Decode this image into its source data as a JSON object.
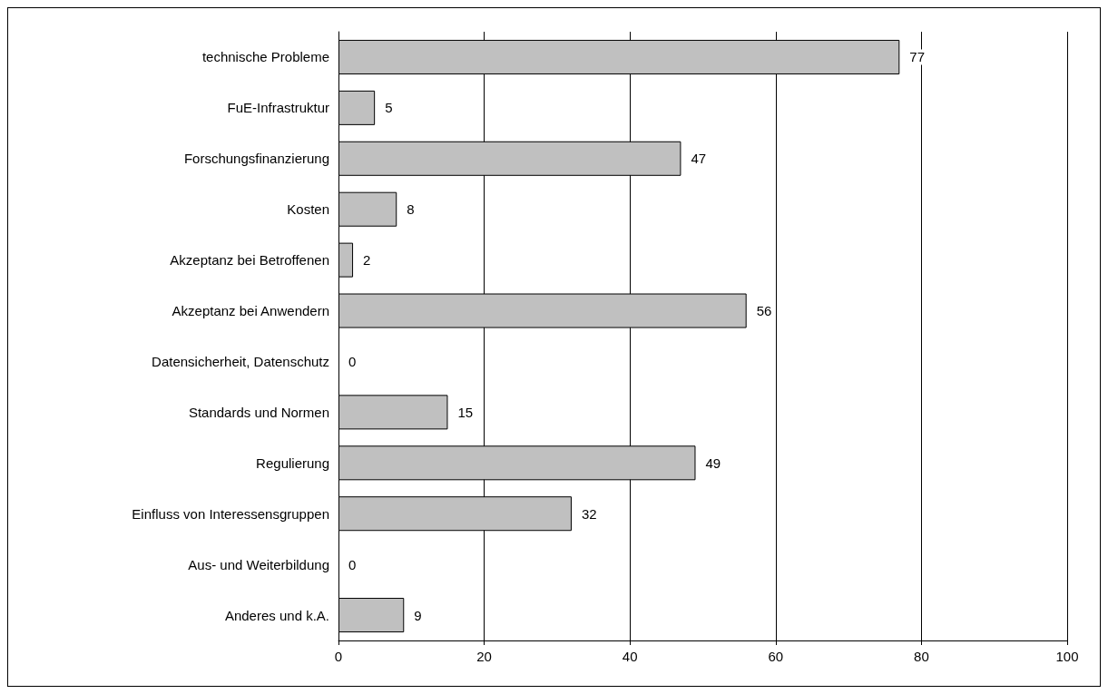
{
  "chart_data": {
    "type": "bar",
    "orientation": "horizontal",
    "categories": [
      "technische Probleme",
      "FuE-Infrastruktur",
      "Forschungsfinanzierung",
      "Kosten",
      "Akzeptanz bei Betroffenen",
      "Akzeptanz bei Anwendern",
      "Datensicherheit, Datenschutz",
      "Standards und Normen",
      "Regulierung",
      "Einfluss von Interessensgruppen",
      "Aus- und Weiterbildung",
      "Anderes und k.A."
    ],
    "values": [
      77,
      5,
      47,
      8,
      2,
      56,
      0,
      15,
      49,
      32,
      0,
      9
    ],
    "color": "#c0c0c0",
    "xlim": [
      0,
      100
    ],
    "xticks": [
      0,
      20,
      40,
      60,
      80,
      100
    ],
    "grid": "x",
    "data_labels": true
  }
}
